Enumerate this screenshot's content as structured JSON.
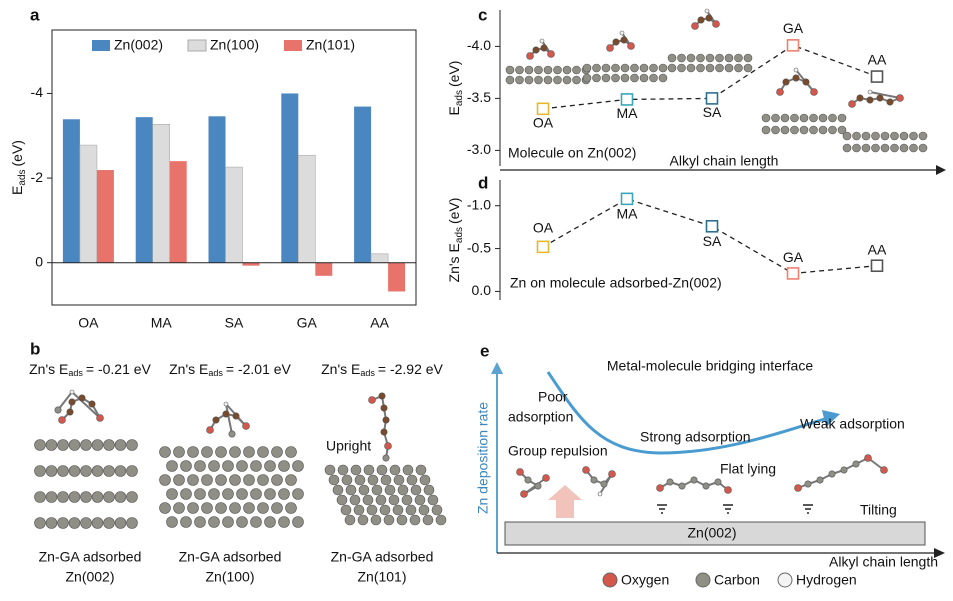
{
  "chart_data": [
    {
      "panel": "a",
      "type": "bar",
      "categories": [
        "OA",
        "MA",
        "SA",
        "GA",
        "AA"
      ],
      "series": [
        {
          "name": "Zn(002)",
          "color": "#4a86c0",
          "values": [
            -3.39,
            -3.44,
            -3.46,
            -4.0,
            -3.69
          ]
        },
        {
          "name": "Zn(100)",
          "color": "#dcdcdc",
          "values": [
            -2.78,
            -3.27,
            -2.26,
            -2.54,
            -0.21
          ]
        },
        {
          "name": "Zn(101)",
          "color": "#e8736a",
          "values": [
            -2.19,
            -2.4,
            0.07,
            0.31,
            0.68
          ]
        }
      ],
      "ylim": [
        1,
        -5.5
      ],
      "yticks": [
        -4,
        -2,
        0
      ],
      "y_label": {
        "main": "E",
        "sub": "ads",
        "unit": "(eV)"
      },
      "legend": "top"
    },
    {
      "panel": "c",
      "type": "scatter",
      "categories": [
        "OA",
        "MA",
        "SA",
        "GA",
        "AA"
      ],
      "values": [
        -3.4,
        -3.49,
        -3.5,
        -4.01,
        -3.71
      ],
      "colors": [
        "#e6b830",
        "#3aa6b9",
        "#2d6f8e",
        "#f08070",
        "#555555"
      ],
      "ylim": [
        -2.85,
        -4.35
      ],
      "yticks": [
        {
          "value": -4,
          "label": "-4.0"
        },
        {
          "value": -3.5,
          "label": "-3.5"
        },
        {
          "value": -3,
          "label": "-3.0"
        }
      ],
      "y_label": {
        "main": "E",
        "sub": "ads",
        "unit": "(eV)"
      },
      "x_label": "Alkyl chain length",
      "annotation": "Molecule on Zn(002)"
    },
    {
      "panel": "d",
      "type": "scatter",
      "categories": [
        "OA",
        "MA",
        "SA",
        "GA",
        "AA"
      ],
      "values": [
        -0.52,
        -1.08,
        -0.76,
        -0.21,
        -0.3
      ],
      "colors": [
        "#e6b830",
        "#3aa6b9",
        "#2d6f8e",
        "#f08070",
        "#555555"
      ],
      "ylim": [
        0.1,
        -1.3
      ],
      "yticks": [
        {
          "value": -1,
          "label": "-1.0"
        },
        {
          "value": -0.5,
          "label": "-0.5"
        },
        {
          "value": 0,
          "label": "0.0"
        }
      ],
      "y_label": {
        "prefix": "Zn's",
        "main": "E",
        "sub": "ads",
        "unit": "(eV)"
      },
      "annotation": "Zn on molecule adsorbed-Zn(002)"
    }
  ],
  "panel_b": {
    "label": "b",
    "annotation": "Upright",
    "columns": [
      {
        "energy": {
          "prefix": "Zn's E",
          "sub": "ads",
          "value": "= -0.21 eV"
        },
        "caption": [
          "Zn-GA adsorbed",
          "Zn(002)"
        ]
      },
      {
        "energy": {
          "prefix": "Zn's E",
          "sub": "ads",
          "value": "= -2.01 eV"
        },
        "caption": [
          "Zn-GA adsorbed",
          "Zn(100)"
        ]
      },
      {
        "energy": {
          "prefix": "Zn's E",
          "sub": "ads",
          "value": "= -2.92 eV"
        },
        "caption": [
          "Zn-GA adsorbed",
          "Zn(101)"
        ]
      }
    ]
  },
  "panel_e": {
    "label": "e",
    "title": "Metal-molecule bridging interface",
    "y_label": "Zn deposition rate",
    "x_label": "Alkyl chain length",
    "substrate": "Zn(002)",
    "notes": [
      "Poor",
      "adsorption",
      "Group repulsion",
      "Strong adsorption",
      "Weak adsorption",
      "Flat lying",
      "Tilting"
    ],
    "legend": [
      "Oxygen",
      "Carbon",
      "Hydrogen"
    ]
  }
}
